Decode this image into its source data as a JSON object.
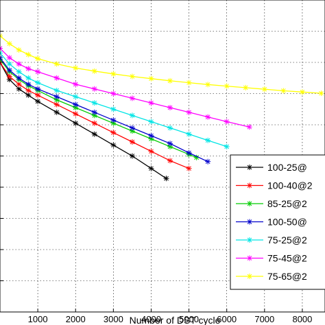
{
  "chart_data": {
    "type": "line",
    "xlabel": "Number of DST cycle",
    "ylabel": "",
    "title": "",
    "xlim": [
      0,
      8600
    ],
    "ylim": [
      0,
      10
    ],
    "xticks": [
      1000,
      2000,
      3000,
      4000,
      5000,
      6000,
      7000,
      8000
    ],
    "grid": true,
    "legend_position": "bottom-right",
    "series": [
      {
        "name": "100-25@",
        "color": "#000000",
        "marker": "asterisk",
        "x": [
          0,
          250,
          500,
          750,
          1000,
          1500,
          2000,
          2500,
          3000,
          3500,
          4000,
          4400
        ],
        "y": [
          8.0,
          7.45,
          7.15,
          6.95,
          6.75,
          6.4,
          6.05,
          5.7,
          5.35,
          5.0,
          4.6,
          4.28
        ]
      },
      {
        "name": "100-40@2",
        "color": "#ff0000",
        "marker": "asterisk",
        "x": [
          0,
          250,
          500,
          750,
          1000,
          1500,
          2000,
          2500,
          3000,
          3500,
          4000,
          4500,
          5000
        ],
        "y": [
          8.0,
          7.55,
          7.3,
          7.1,
          6.95,
          6.65,
          6.35,
          6.05,
          5.75,
          5.45,
          5.15,
          4.85,
          4.6
        ]
      },
      {
        "name": "85-25@2",
        "color": "#00cc00",
        "marker": "asterisk",
        "x": [
          0,
          250,
          500,
          750,
          1000,
          1500,
          2000,
          2500,
          3000,
          3500,
          4000,
          4500,
          5000,
          5200
        ],
        "y": [
          8.1,
          7.7,
          7.45,
          7.25,
          7.1,
          6.8,
          6.55,
          6.3,
          6.05,
          5.8,
          5.55,
          5.3,
          5.05,
          4.95
        ]
      },
      {
        "name": "100-50@",
        "color": "#0000cc",
        "marker": "asterisk",
        "x": [
          0,
          250,
          500,
          750,
          1000,
          1500,
          2000,
          2500,
          3000,
          3500,
          4000,
          4500,
          5000,
          5500
        ],
        "y": [
          8.15,
          7.75,
          7.5,
          7.3,
          7.15,
          6.9,
          6.65,
          6.4,
          6.15,
          5.9,
          5.65,
          5.4,
          5.1,
          4.82
        ]
      },
      {
        "name": "75-25@2",
        "color": "#00e5e5",
        "marker": "asterisk",
        "x": [
          0,
          250,
          500,
          750,
          1000,
          1500,
          2000,
          2500,
          3000,
          3500,
          4000,
          4500,
          5000,
          5500,
          6000
        ],
        "y": [
          8.3,
          7.95,
          7.7,
          7.5,
          7.35,
          7.1,
          6.9,
          6.7,
          6.5,
          6.3,
          6.1,
          5.9,
          5.7,
          5.5,
          5.3
        ]
      },
      {
        "name": "75-45@2",
        "color": "#ff00ff",
        "marker": "asterisk",
        "x": [
          0,
          250,
          500,
          750,
          1000,
          1500,
          2000,
          2500,
          3000,
          3500,
          4000,
          4500,
          5000,
          5500,
          6000,
          6600
        ],
        "y": [
          8.45,
          8.15,
          7.95,
          7.8,
          7.7,
          7.5,
          7.3,
          7.15,
          7.0,
          6.85,
          6.7,
          6.55,
          6.4,
          6.25,
          6.1,
          5.93
        ]
      },
      {
        "name": "75-65@2",
        "color": "#ffff00",
        "marker": "asterisk",
        "x": [
          0,
          250,
          500,
          750,
          1000,
          1500,
          2000,
          2500,
          3000,
          3500,
          4000,
          4500,
          5000,
          5500,
          6000,
          6500,
          7000,
          7500,
          8000,
          8500
        ],
        "y": [
          8.85,
          8.6,
          8.4,
          8.25,
          8.12,
          7.95,
          7.82,
          7.72,
          7.63,
          7.55,
          7.48,
          7.41,
          7.35,
          7.29,
          7.24,
          7.19,
          7.14,
          7.09,
          7.05,
          7.01
        ]
      }
    ]
  }
}
